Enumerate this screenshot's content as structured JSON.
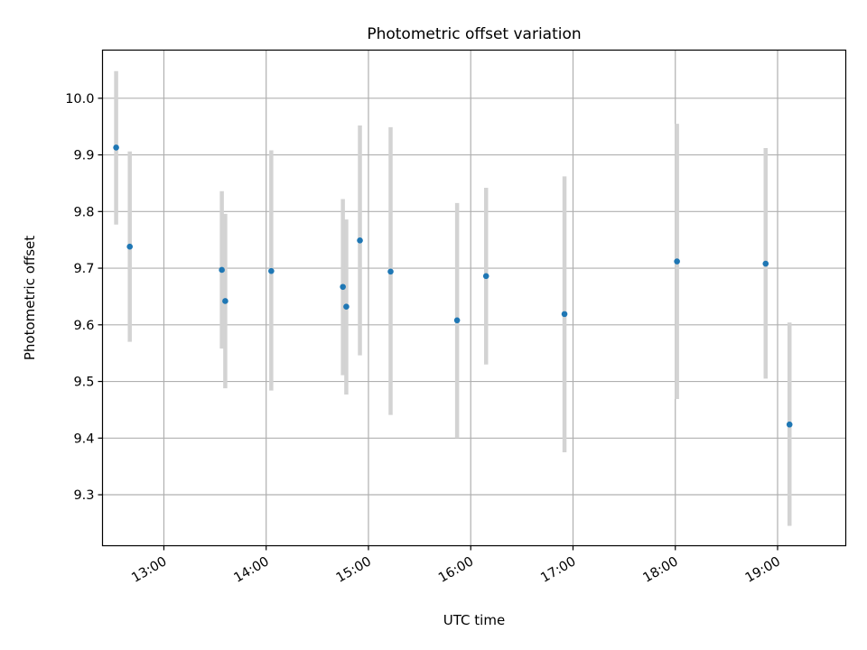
{
  "chart_data": {
    "type": "scatter",
    "title": "Photometric offset variation",
    "xlabel": "UTC time",
    "ylabel": "Photometric offset",
    "xlim": [
      "12:24",
      "19:40"
    ],
    "ylim": [
      9.21,
      10.085
    ],
    "x_ticks": [
      "13:00",
      "14:00",
      "15:00",
      "16:00",
      "17:00",
      "18:00",
      "19:00"
    ],
    "y_ticks": [
      "9.3",
      "9.4",
      "9.5",
      "9.6",
      "9.7",
      "9.8",
      "9.9",
      "10.0"
    ],
    "grid": true,
    "colors": {
      "point": "#1f77b4",
      "errorbar": "#d3d3d3",
      "grid": "#b0b0b0"
    },
    "points": [
      {
        "x": "12:32",
        "y": 9.913,
        "ylow": 9.777,
        "yhigh": 10.048
      },
      {
        "x": "12:40",
        "y": 9.738,
        "ylow": 9.57,
        "yhigh": 9.906
      },
      {
        "x": "13:34",
        "y": 9.697,
        "ylow": 9.558,
        "yhigh": 9.836
      },
      {
        "x": "13:36",
        "y": 9.642,
        "ylow": 9.488,
        "yhigh": 9.796
      },
      {
        "x": "14:03",
        "y": 9.695,
        "ylow": 9.484,
        "yhigh": 9.908
      },
      {
        "x": "14:45",
        "y": 9.667,
        "ylow": 9.511,
        "yhigh": 9.822
      },
      {
        "x": "14:47",
        "y": 9.632,
        "ylow": 9.477,
        "yhigh": 9.786
      },
      {
        "x": "14:55",
        "y": 9.749,
        "ylow": 9.546,
        "yhigh": 9.952
      },
      {
        "x": "15:13",
        "y": 9.694,
        "ylow": 9.441,
        "yhigh": 9.949
      },
      {
        "x": "15:52",
        "y": 9.608,
        "ylow": 9.4,
        "yhigh": 9.815
      },
      {
        "x": "16:09",
        "y": 9.686,
        "ylow": 9.53,
        "yhigh": 9.842
      },
      {
        "x": "16:55",
        "y": 9.619,
        "ylow": 9.375,
        "yhigh": 9.862
      },
      {
        "x": "18:01",
        "y": 9.712,
        "ylow": 9.469,
        "yhigh": 9.955
      },
      {
        "x": "18:53",
        "y": 9.708,
        "ylow": 9.505,
        "yhigh": 9.912
      },
      {
        "x": "19:07",
        "y": 9.424,
        "ylow": 9.245,
        "yhigh": 9.604
      }
    ]
  }
}
